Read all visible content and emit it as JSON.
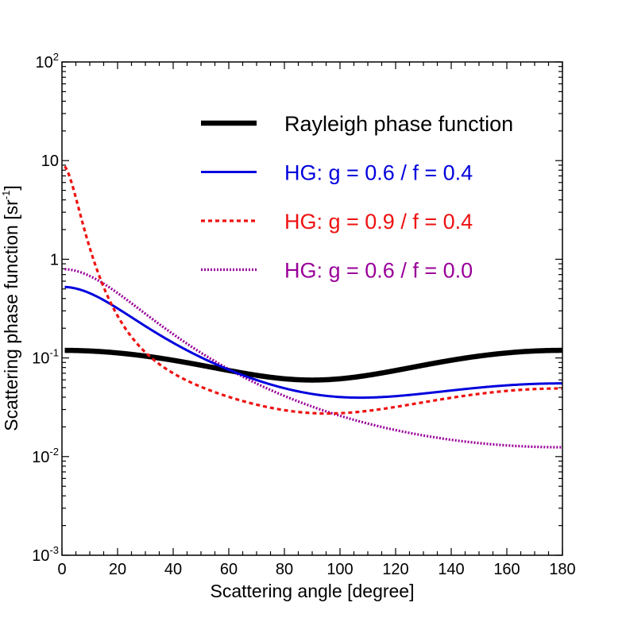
{
  "chart_data": {
    "type": "line",
    "title": "",
    "xlabel": "Scattering angle [degree]",
    "ylabel_main": "Scattering phase function [sr",
    "ylabel_sup": "-1",
    "ylabel_end": "]",
    "xlim": [
      0,
      180
    ],
    "ylim_log10": [
      -3,
      2
    ],
    "yscale": "log",
    "x_ticks": [
      0,
      20,
      40,
      60,
      80,
      100,
      120,
      140,
      160,
      180
    ],
    "x_tick_labels": [
      "0",
      "20",
      "40",
      "60",
      "80",
      "100",
      "120",
      "140",
      "160",
      "180"
    ],
    "y_ticks": [
      {
        "value": 0.001,
        "base": "10",
        "exp": "-3"
      },
      {
        "value": 0.01,
        "base": "10",
        "exp": "-2"
      },
      {
        "value": 0.1,
        "base": "10",
        "exp": "-1"
      },
      {
        "value": 1,
        "base": "1",
        "exp": ""
      },
      {
        "value": 10,
        "base": "10",
        "exp": ""
      },
      {
        "value": 100,
        "base": "10",
        "exp": "2"
      }
    ],
    "legend_position": "top-right",
    "grid": false,
    "series": [
      {
        "name": "Rayleigh phase function",
        "color": "#000000",
        "style": "solid-thick",
        "model": "rayleigh"
      },
      {
        "name": "HG: g = 0.6 / f = 0.4",
        "color": "#0000dd",
        "style": "solid",
        "model": "hg",
        "g": 0.6,
        "f": 0.4
      },
      {
        "name": "HG: g = 0.9 / f = 0.4",
        "color": "#ee1111",
        "style": "dashed",
        "model": "hg",
        "g": 0.9,
        "f": 0.4
      },
      {
        "name": "HG: g = 0.6 / f = 0.0",
        "color": "#990099",
        "style": "dotted",
        "model": "hg",
        "g": 0.6,
        "f": 0.0
      }
    ]
  }
}
